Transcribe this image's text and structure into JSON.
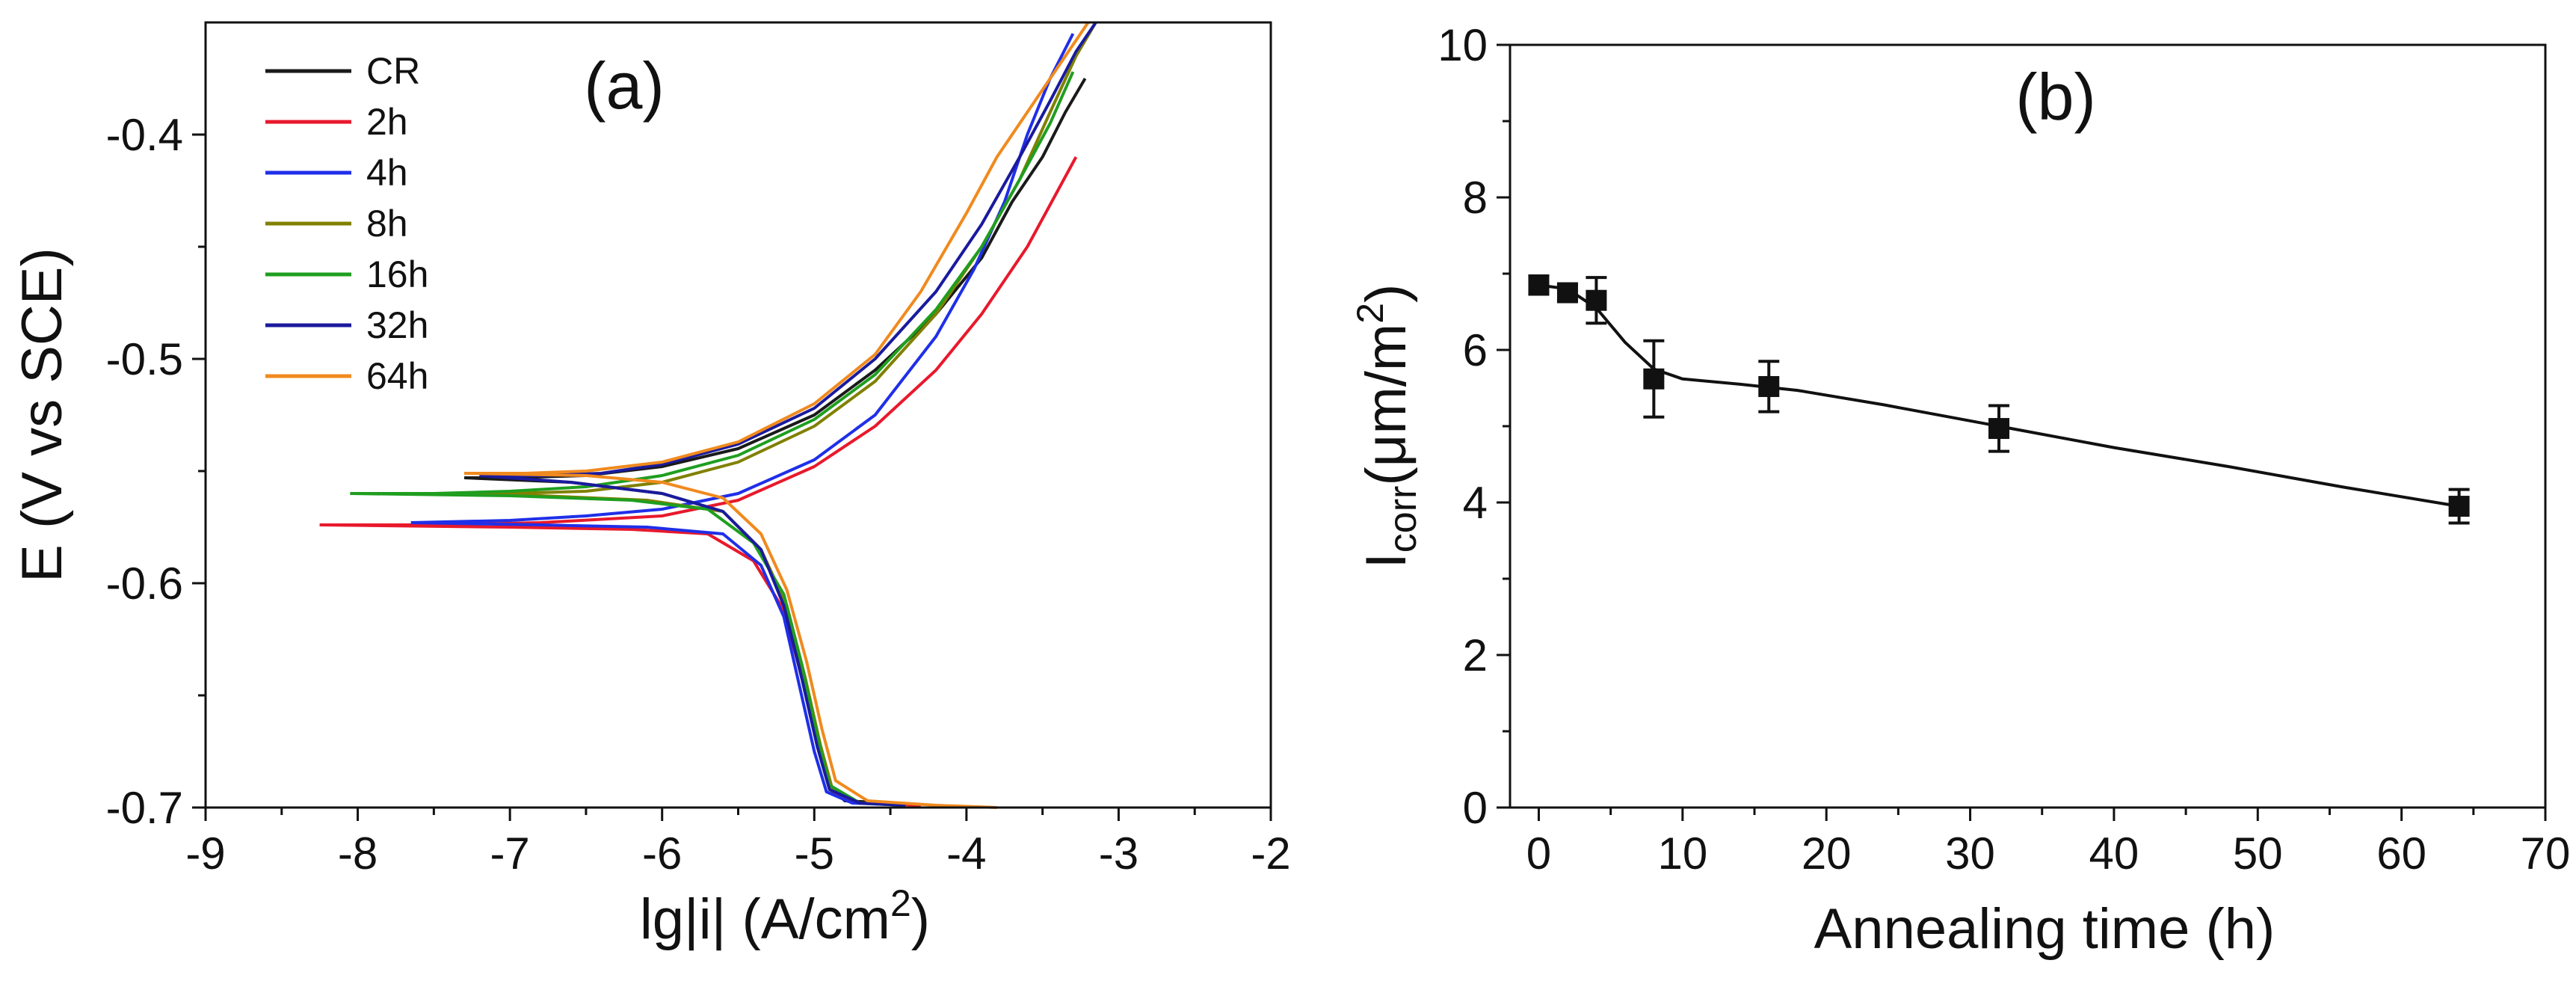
{
  "figure": {
    "panels": [
      "(a)",
      "(b)"
    ]
  },
  "chart_data": [
    {
      "id": "a",
      "type": "line",
      "panel_label": "(a)",
      "title": "",
      "xlabel": "lg|i| (A/cm²)",
      "xlabel_main": "lg|i| (A/cm",
      "xlabel_sup": "2",
      "xlabel_end": ")",
      "ylabel": "E (V vs SCE)",
      "xlim": [
        -9,
        -2
      ],
      "ylim": [
        -0.7,
        -0.35
      ],
      "xticks": [
        -9,
        -8,
        -7,
        -6,
        -5,
        -4,
        -3,
        -2
      ],
      "xtick_labels": [
        "-9",
        "-8",
        "-7",
        "-6",
        "-5",
        "-4",
        "-3",
        "-2"
      ],
      "yticks": [
        -0.7,
        -0.6,
        -0.5,
        -0.4
      ],
      "ytick_labels": [
        "-0.7",
        "-0.6",
        "-0.5",
        "-0.4"
      ],
      "legend_position": "top-left",
      "series": [
        {
          "name": "CR",
          "color": "#1a1a1a",
          "anodic": [
            [
              -7.3,
              -0.553
            ],
            [
              -7.0,
              -0.553
            ],
            [
              -6.5,
              -0.552
            ],
            [
              -6.0,
              -0.548
            ],
            [
              -5.5,
              -0.54
            ],
            [
              -5.0,
              -0.525
            ],
            [
              -4.6,
              -0.505
            ],
            [
              -4.2,
              -0.48
            ],
            [
              -3.9,
              -0.455
            ],
            [
              -3.7,
              -0.43
            ],
            [
              -3.5,
              -0.41
            ],
            [
              -3.35,
              -0.39
            ],
            [
              -3.22,
              -0.375
            ]
          ],
          "cathodic": [
            [
              -7.3,
              -0.553
            ],
            [
              -6.6,
              -0.555
            ],
            [
              -6.0,
              -0.56
            ],
            [
              -5.6,
              -0.568
            ],
            [
              -5.35,
              -0.585
            ],
            [
              -5.2,
              -0.61
            ],
            [
              -5.08,
              -0.64
            ],
            [
              -4.98,
              -0.67
            ],
            [
              -4.9,
              -0.69
            ],
            [
              -4.8,
              -0.697
            ],
            [
              -4.5,
              -0.698
            ]
          ]
        },
        {
          "name": "2h",
          "color": "#e8192c",
          "anodic": [
            [
              -8.25,
              -0.574
            ],
            [
              -7.5,
              -0.574
            ],
            [
              -6.8,
              -0.573
            ],
            [
              -6.0,
              -0.57
            ],
            [
              -5.5,
              -0.563
            ],
            [
              -5.0,
              -0.548
            ],
            [
              -4.6,
              -0.53
            ],
            [
              -4.2,
              -0.505
            ],
            [
              -3.9,
              -0.48
            ],
            [
              -3.6,
              -0.45
            ],
            [
              -3.4,
              -0.425
            ],
            [
              -3.28,
              -0.41
            ]
          ],
          "cathodic": [
            [
              -8.25,
              -0.574
            ],
            [
              -7.0,
              -0.575
            ],
            [
              -6.2,
              -0.576
            ],
            [
              -5.7,
              -0.578
            ],
            [
              -5.4,
              -0.59
            ],
            [
              -5.2,
              -0.612
            ],
            [
              -5.07,
              -0.645
            ],
            [
              -4.97,
              -0.675
            ],
            [
              -4.88,
              -0.693
            ],
            [
              -4.7,
              -0.698
            ],
            [
              -4.3,
              -0.699
            ]
          ]
        },
        {
          "name": "4h",
          "color": "#1f2fe8",
          "anodic": [
            [
              -7.65,
              -0.573
            ],
            [
              -7.0,
              -0.572
            ],
            [
              -6.5,
              -0.57
            ],
            [
              -6.0,
              -0.567
            ],
            [
              -5.5,
              -0.56
            ],
            [
              -5.0,
              -0.545
            ],
            [
              -4.6,
              -0.525
            ],
            [
              -4.2,
              -0.49
            ],
            [
              -3.95,
              -0.46
            ],
            [
              -3.75,
              -0.43
            ],
            [
              -3.6,
              -0.4
            ],
            [
              -3.45,
              -0.375
            ],
            [
              -3.3,
              -0.355
            ]
          ],
          "cathodic": [
            [
              -7.65,
              -0.573
            ],
            [
              -6.8,
              -0.574
            ],
            [
              -6.1,
              -0.575
            ],
            [
              -5.6,
              -0.578
            ],
            [
              -5.35,
              -0.592
            ],
            [
              -5.2,
              -0.615
            ],
            [
              -5.1,
              -0.645
            ],
            [
              -5.0,
              -0.675
            ],
            [
              -4.92,
              -0.693
            ],
            [
              -4.75,
              -0.698
            ],
            [
              -4.4,
              -0.699
            ]
          ]
        },
        {
          "name": "8h",
          "color": "#808000",
          "anodic": [
            [
              -7.5,
              -0.56
            ],
            [
              -7.0,
              -0.56
            ],
            [
              -6.5,
              -0.559
            ],
            [
              -6.0,
              -0.555
            ],
            [
              -5.5,
              -0.546
            ],
            [
              -5.0,
              -0.53
            ],
            [
              -4.6,
              -0.51
            ],
            [
              -4.2,
              -0.48
            ],
            [
              -3.9,
              -0.45
            ],
            [
              -3.65,
              -0.42
            ],
            [
              -3.45,
              -0.39
            ],
            [
              -3.28,
              -0.365
            ],
            [
              -3.15,
              -0.35
            ]
          ],
          "cathodic": [
            [
              -7.5,
              -0.56
            ],
            [
              -6.8,
              -0.561
            ],
            [
              -6.1,
              -0.563
            ],
            [
              -5.6,
              -0.568
            ],
            [
              -5.35,
              -0.585
            ],
            [
              -5.18,
              -0.61
            ],
            [
              -5.06,
              -0.642
            ],
            [
              -4.96,
              -0.672
            ],
            [
              -4.88,
              -0.692
            ],
            [
              -4.7,
              -0.698
            ],
            [
              -4.4,
              -0.699
            ]
          ]
        },
        {
          "name": "16h",
          "color": "#1f9e1f",
          "anodic": [
            [
              -8.05,
              -0.56
            ],
            [
              -7.5,
              -0.56
            ],
            [
              -7.0,
              -0.559
            ],
            [
              -6.5,
              -0.557
            ],
            [
              -6.0,
              -0.552
            ],
            [
              -5.5,
              -0.543
            ],
            [
              -5.0,
              -0.527
            ],
            [
              -4.6,
              -0.507
            ],
            [
              -4.2,
              -0.478
            ],
            [
              -3.9,
              -0.45
            ],
            [
              -3.65,
              -0.42
            ],
            [
              -3.45,
              -0.395
            ],
            [
              -3.3,
              -0.372
            ]
          ],
          "cathodic": [
            [
              -8.05,
              -0.56
            ],
            [
              -7.0,
              -0.561
            ],
            [
              -6.2,
              -0.563
            ],
            [
              -5.7,
              -0.567
            ],
            [
              -5.4,
              -0.582
            ],
            [
              -5.2,
              -0.605
            ],
            [
              -5.08,
              -0.637
            ],
            [
              -4.98,
              -0.668
            ],
            [
              -4.9,
              -0.69
            ],
            [
              -4.7,
              -0.698
            ],
            [
              -4.4,
              -0.699
            ]
          ]
        },
        {
          "name": "32h",
          "color": "#1a1a9e",
          "anodic": [
            [
              -7.2,
              -0.552
            ],
            [
              -6.8,
              -0.552
            ],
            [
              -6.4,
              -0.551
            ],
            [
              -6.0,
              -0.547
            ],
            [
              -5.5,
              -0.538
            ],
            [
              -5.0,
              -0.522
            ],
            [
              -4.6,
              -0.5
            ],
            [
              -4.2,
              -0.47
            ],
            [
              -3.9,
              -0.44
            ],
            [
              -3.65,
              -0.41
            ],
            [
              -3.45,
              -0.385
            ],
            [
              -3.28,
              -0.363
            ],
            [
              -3.15,
              -0.35
            ]
          ],
          "cathodic": [
            [
              -7.2,
              -0.552
            ],
            [
              -6.6,
              -0.555
            ],
            [
              -6.0,
              -0.56
            ],
            [
              -5.6,
              -0.568
            ],
            [
              -5.35,
              -0.585
            ],
            [
              -5.2,
              -0.61
            ],
            [
              -5.08,
              -0.643
            ],
            [
              -4.98,
              -0.673
            ],
            [
              -4.9,
              -0.692
            ],
            [
              -4.7,
              -0.698
            ],
            [
              -4.4,
              -0.699
            ]
          ]
        },
        {
          "name": "64h",
          "color": "#f08a1e",
          "anodic": [
            [
              -7.3,
              -0.551
            ],
            [
              -6.9,
              -0.551
            ],
            [
              -6.5,
              -0.55
            ],
            [
              -6.0,
              -0.546
            ],
            [
              -5.5,
              -0.537
            ],
            [
              -5.0,
              -0.52
            ],
            [
              -4.6,
              -0.498
            ],
            [
              -4.3,
              -0.47
            ],
            [
              -4.0,
              -0.435
            ],
            [
              -3.8,
              -0.41
            ],
            [
              -3.6,
              -0.39
            ],
            [
              -3.4,
              -0.37
            ],
            [
              -3.2,
              -0.35
            ]
          ],
          "cathodic": [
            [
              -7.3,
              -0.551
            ],
            [
              -6.5,
              -0.552
            ],
            [
              -6.0,
              -0.555
            ],
            [
              -5.6,
              -0.562
            ],
            [
              -5.35,
              -0.578
            ],
            [
              -5.18,
              -0.603
            ],
            [
              -5.05,
              -0.635
            ],
            [
              -4.95,
              -0.665
            ],
            [
              -4.86,
              -0.688
            ],
            [
              -4.65,
              -0.697
            ],
            [
              -4.2,
              -0.699
            ],
            [
              -3.8,
              -0.7
            ]
          ]
        }
      ]
    },
    {
      "id": "b",
      "type": "scatter",
      "panel_label": "(b)",
      "title": "",
      "xlabel": "Annealing time (h)",
      "ylabel": "Icorr(μm/m²)",
      "ylabel_main": "I",
      "ylabel_sub": "corr",
      "ylabel_rest": "(μm/m",
      "ylabel_sup": "2",
      "ylabel_end": ")",
      "xlim": [
        -2,
        70
      ],
      "ylim": [
        0,
        10
      ],
      "xticks": [
        0,
        10,
        20,
        30,
        40,
        50,
        60,
        70
      ],
      "xtick_labels": [
        "0",
        "10",
        "20",
        "30",
        "40",
        "50",
        "60",
        "70"
      ],
      "yticks": [
        0,
        2,
        4,
        6,
        8,
        10
      ],
      "ytick_labels": [
        "0",
        "2",
        "4",
        "6",
        "8",
        "10"
      ],
      "points": [
        {
          "x": 0,
          "y": 6.85,
          "err": 0.12
        },
        {
          "x": 2,
          "y": 6.75,
          "err": 0.1
        },
        {
          "x": 4,
          "y": 6.65,
          "err": 0.3
        },
        {
          "x": 8,
          "y": 5.62,
          "err": 0.5
        },
        {
          "x": 16,
          "y": 5.52,
          "err": 0.33
        },
        {
          "x": 32,
          "y": 4.97,
          "err": 0.3
        },
        {
          "x": 64,
          "y": 3.95,
          "err": 0.22
        }
      ],
      "fit_curve": [
        [
          0,
          6.85
        ],
        [
          2,
          6.8
        ],
        [
          4,
          6.55
        ],
        [
          6,
          6.1
        ],
        [
          8,
          5.75
        ],
        [
          10,
          5.62
        ],
        [
          14,
          5.55
        ],
        [
          18,
          5.47
        ],
        [
          24,
          5.28
        ],
        [
          32,
          5.0
        ],
        [
          40,
          4.72
        ],
        [
          48,
          4.47
        ],
        [
          56,
          4.2
        ],
        [
          64,
          3.95
        ]
      ]
    }
  ]
}
